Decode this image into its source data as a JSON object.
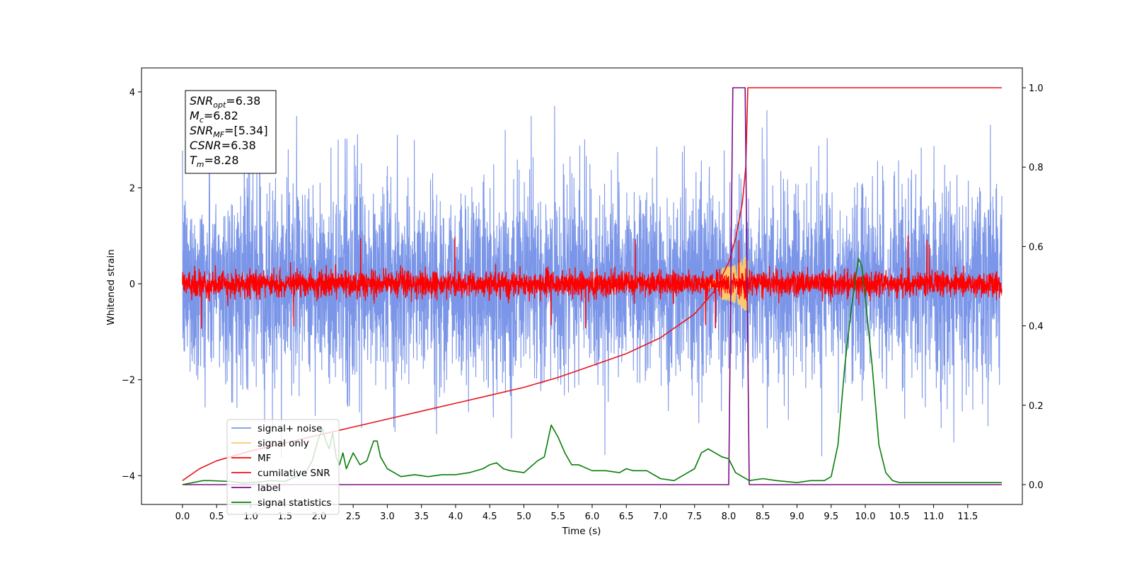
{
  "chart_data": {
    "type": "line",
    "title": "",
    "xlabel": "Time (s)",
    "ylabel": "Whitened strain",
    "xlim": [
      -0.6,
      12.3
    ],
    "ylim_left": [
      -4.6,
      4.5
    ],
    "ylim_right": [
      -0.05,
      1.05
    ],
    "x_ticks": [
      0.0,
      0.5,
      1.0,
      1.5,
      2.0,
      2.5,
      3.0,
      3.5,
      4.0,
      4.5,
      5.0,
      5.5,
      6.0,
      6.5,
      7.0,
      7.5,
      8.0,
      8.5,
      9.0,
      9.5,
      10.0,
      10.5,
      11.0,
      11.5
    ],
    "x_tick_labels": [
      "0.0",
      "0.5",
      "1.0",
      "1.5",
      "2.0",
      "2.5",
      "3.0",
      "3.5",
      "4.0",
      "4.5",
      "5.0",
      "5.5",
      "6.0",
      "6.5",
      "7.0",
      "7.5",
      "8.0",
      "8.5",
      "9.0",
      "9.5",
      "10.0",
      "10.5",
      "11.0",
      "11.5"
    ],
    "y_left_ticks": [
      -4,
      -2,
      0,
      2,
      4
    ],
    "y_left_tick_labels": [
      "−4",
      "−2",
      "0",
      "2",
      "4"
    ],
    "y_right_ticks": [
      0.0,
      0.2,
      0.4,
      0.6,
      0.8,
      1.0
    ],
    "y_right_tick_labels": [
      "0.0",
      "0.2",
      "0.4",
      "0.6",
      "0.8",
      "1.0"
    ],
    "grid": false,
    "legend_position": "lower-left",
    "annotation": [
      {
        "sym": "SNR",
        "sub": "opt",
        "val": "=6.38"
      },
      {
        "sym": "M",
        "sub": "c",
        "val": "=6.82"
      },
      {
        "sym": "SNR",
        "sub": "MF",
        "val": "=[5.34]"
      },
      {
        "sym": "CSNR",
        "sub": "",
        "val": "=6.38"
      },
      {
        "sym": "T",
        "sub": "m",
        "val": "=8.28"
      }
    ],
    "series": [
      {
        "name": "signal+ noise",
        "color": "#7b96e8",
        "axis": "left",
        "kind": "noise",
        "t_start": 0.0,
        "t_end": 12.0,
        "sigma": 1.0,
        "amp_peak": 3.7,
        "amp_min": -4.15
      },
      {
        "name": "signal only",
        "color": "#f9c96e",
        "axis": "left",
        "kind": "chirp",
        "t_merge": 8.28,
        "amp_max": 0.55
      },
      {
        "name": "MF",
        "color": "#ff0000",
        "axis": "left",
        "kind": "noise",
        "t_start": 0.0,
        "t_end": 12.0,
        "sigma": 0.13,
        "amp_peak": 1.0
      },
      {
        "name": "cumilative SNR",
        "color": "#e8151c",
        "axis": "right",
        "x": [
          0.0,
          0.25,
          0.5,
          1.0,
          1.5,
          2.0,
          2.5,
          3.0,
          3.5,
          4.0,
          4.5,
          5.0,
          5.5,
          6.0,
          6.5,
          7.0,
          7.5,
          7.8,
          8.0,
          8.1,
          8.2,
          8.25,
          8.28,
          8.5,
          9.0,
          10.0,
          11.0,
          12.0
        ],
        "y": [
          0.01,
          0.04,
          0.06,
          0.085,
          0.105,
          0.125,
          0.145,
          0.165,
          0.185,
          0.205,
          0.225,
          0.245,
          0.27,
          0.3,
          0.33,
          0.37,
          0.43,
          0.49,
          0.56,
          0.62,
          0.71,
          0.8,
          1.0,
          1.0,
          1.0,
          1.0,
          1.0,
          1.0
        ]
      },
      {
        "name": "label",
        "color": "#7b0f86",
        "axis": "right",
        "x": [
          0.0,
          8.0,
          8.06,
          8.24,
          8.3,
          12.0
        ],
        "y": [
          0.0,
          0.0,
          1.0,
          1.0,
          0.0,
          0.0
        ]
      },
      {
        "name": "signal statistics",
        "color": "#0a7d0a",
        "axis": "right",
        "x": [
          0.0,
          0.3,
          0.4,
          0.7,
          0.9,
          1.1,
          1.3,
          1.5,
          1.8,
          1.9,
          2.0,
          2.05,
          2.1,
          2.15,
          2.2,
          2.25,
          2.3,
          2.35,
          2.4,
          2.5,
          2.6,
          2.7,
          2.8,
          2.85,
          2.9,
          3.0,
          3.1,
          3.2,
          3.4,
          3.6,
          3.8,
          4.0,
          4.2,
          4.4,
          4.5,
          4.6,
          4.7,
          4.8,
          5.0,
          5.2,
          5.3,
          5.4,
          5.5,
          5.6,
          5.7,
          5.8,
          6.0,
          6.2,
          6.4,
          6.5,
          6.6,
          6.8,
          7.0,
          7.2,
          7.4,
          7.5,
          7.6,
          7.7,
          7.8,
          7.9,
          8.0,
          8.1,
          8.2,
          8.3,
          8.5,
          8.7,
          9.0,
          9.2,
          9.4,
          9.5,
          9.6,
          9.7,
          9.8,
          9.9,
          9.95,
          10.0,
          10.1,
          10.2,
          10.3,
          10.4,
          10.5,
          10.7,
          11.0,
          11.2,
          11.4,
          11.6,
          11.8,
          12.0
        ],
        "y": [
          0.0,
          0.01,
          0.01,
          0.008,
          0.004,
          0.006,
          0.01,
          0.008,
          0.03,
          0.06,
          0.12,
          0.14,
          0.11,
          0.09,
          0.13,
          0.07,
          0.05,
          0.08,
          0.04,
          0.08,
          0.05,
          0.06,
          0.11,
          0.11,
          0.07,
          0.04,
          0.03,
          0.02,
          0.025,
          0.02,
          0.025,
          0.025,
          0.03,
          0.04,
          0.05,
          0.055,
          0.04,
          0.035,
          0.03,
          0.06,
          0.07,
          0.15,
          0.12,
          0.08,
          0.05,
          0.05,
          0.035,
          0.035,
          0.03,
          0.04,
          0.035,
          0.035,
          0.015,
          0.01,
          0.03,
          0.04,
          0.08,
          0.09,
          0.08,
          0.07,
          0.065,
          0.03,
          0.02,
          0.01,
          0.015,
          0.01,
          0.005,
          0.01,
          0.01,
          0.02,
          0.1,
          0.3,
          0.45,
          0.57,
          0.55,
          0.47,
          0.3,
          0.1,
          0.03,
          0.01,
          0.005,
          0.005,
          0.005,
          0.005,
          0.005,
          0.005,
          0.005,
          0.005
        ]
      }
    ]
  }
}
